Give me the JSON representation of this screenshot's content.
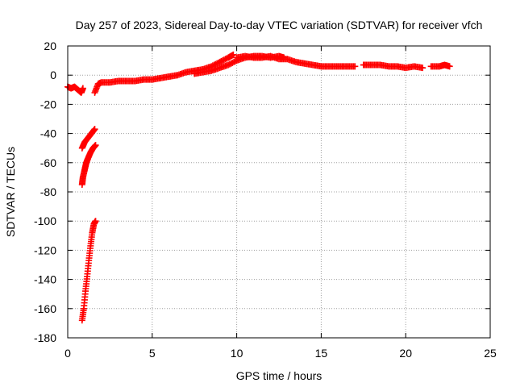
{
  "chart_data": {
    "type": "scatter",
    "title": "Day 257 of 2023, Sidereal Day-to-day VTEC variation (SDTVAR) for receiver vfch",
    "xlabel": "GPS time / hours",
    "ylabel": "SDTVAR / TECUs",
    "xlim": [
      0,
      25
    ],
    "ylim": [
      -180,
      20
    ],
    "xticks": [
      0,
      5,
      10,
      15,
      20,
      25
    ],
    "yticks": [
      -180,
      -160,
      -140,
      -120,
      -100,
      -80,
      -60,
      -40,
      -20,
      0,
      20
    ],
    "grid": true,
    "marker": "+",
    "color": "#ff0000",
    "segments": [
      {
        "points": [
          [
            0.0,
            -8
          ],
          [
            0.2,
            -9
          ],
          [
            0.4,
            -8
          ],
          [
            0.6,
            -10
          ],
          [
            0.8,
            -12
          ],
          [
            0.9,
            -9
          ]
        ]
      },
      {
        "points": [
          [
            0.85,
            -50
          ],
          [
            1.0,
            -46
          ],
          [
            1.2,
            -43
          ],
          [
            1.4,
            -40
          ],
          [
            1.6,
            -37
          ]
        ]
      },
      {
        "points": [
          [
            0.85,
            -75
          ],
          [
            0.9,
            -70
          ],
          [
            1.0,
            -65
          ],
          [
            1.1,
            -60
          ],
          [
            1.2,
            -57
          ],
          [
            1.35,
            -53
          ],
          [
            1.5,
            -50
          ],
          [
            1.65,
            -48
          ]
        ]
      },
      {
        "points": [
          [
            0.85,
            -168
          ],
          [
            0.95,
            -160
          ],
          [
            1.05,
            -148
          ],
          [
            1.15,
            -138
          ],
          [
            1.25,
            -127
          ],
          [
            1.35,
            -117
          ],
          [
            1.45,
            -108
          ],
          [
            1.55,
            -102
          ],
          [
            1.65,
            -100
          ]
        ]
      },
      {
        "points": [
          [
            1.6,
            -12
          ],
          [
            1.8,
            -6
          ],
          [
            2.0,
            -5
          ],
          [
            2.5,
            -5
          ],
          [
            3.0,
            -4
          ],
          [
            3.5,
            -4
          ],
          [
            4.0,
            -4
          ],
          [
            4.5,
            -3
          ],
          [
            5.0,
            -3
          ],
          [
            5.5,
            -2
          ],
          [
            6.0,
            -1
          ],
          [
            6.5,
            0
          ],
          [
            7.0,
            2
          ],
          [
            7.5,
            3
          ],
          [
            8.0,
            4
          ],
          [
            8.5,
            6
          ],
          [
            9.0,
            9
          ],
          [
            9.5,
            12
          ],
          [
            9.8,
            14
          ]
        ]
      },
      {
        "points": [
          [
            7.5,
            1
          ],
          [
            8.0,
            2
          ],
          [
            8.5,
            3
          ],
          [
            9.0,
            5
          ],
          [
            9.5,
            7
          ],
          [
            10.0,
            10
          ],
          [
            10.5,
            12
          ],
          [
            11.0,
            13
          ],
          [
            11.5,
            13
          ],
          [
            12.0,
            12
          ],
          [
            12.5,
            13
          ],
          [
            12.8,
            12
          ]
        ]
      },
      {
        "points": [
          [
            10.0,
            12
          ],
          [
            10.5,
            13
          ],
          [
            11.0,
            12
          ],
          [
            11.5,
            12
          ],
          [
            12.0,
            13
          ],
          [
            12.5,
            11
          ],
          [
            13.0,
            11
          ],
          [
            13.5,
            9
          ],
          [
            14.0,
            8
          ],
          [
            14.5,
            7
          ],
          [
            15.0,
            6
          ],
          [
            15.5,
            6
          ],
          [
            16.0,
            6
          ],
          [
            16.5,
            6
          ],
          [
            17.0,
            6
          ]
        ]
      },
      {
        "points": [
          [
            17.5,
            7
          ],
          [
            18.0,
            7
          ],
          [
            18.5,
            7
          ],
          [
            19.0,
            6
          ],
          [
            19.5,
            6
          ],
          [
            20.0,
            5
          ],
          [
            20.5,
            6
          ],
          [
            21.0,
            5
          ]
        ]
      },
      {
        "points": [
          [
            21.5,
            6
          ],
          [
            22.0,
            6
          ],
          [
            22.3,
            7
          ],
          [
            22.6,
            6
          ]
        ]
      }
    ]
  }
}
